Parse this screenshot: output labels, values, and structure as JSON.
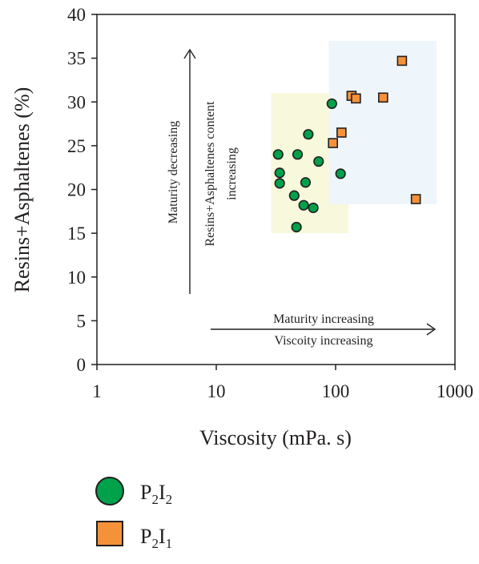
{
  "chart_data": {
    "type": "scatter",
    "xlabel": "Viscosity (mPa. s)",
    "ylabel": "Resins+Asphaltenes (%)",
    "xscale": "log",
    "xlim": [
      1,
      1000
    ],
    "x_ticks": [
      "1",
      "10",
      "100",
      "1000"
    ],
    "y_ticks": [
      "0",
      "5",
      "10",
      "15",
      "20",
      "25",
      "30",
      "35",
      "40"
    ],
    "grid": false,
    "legend_placement": "below",
    "annotations": {
      "vertical_arrow_text": "Maturity decreasing",
      "vertical_text_line1": "Resins+Asphaltenes content",
      "vertical_text_line2": "increasing",
      "horizontal_text_line1": "Maturity increasing",
      "horizontal_text_line2": "Viscoity increasing"
    },
    "regions": [
      {
        "series": "P2I2",
        "x": [
          29,
          128
        ],
        "y": [
          15,
          31
        ],
        "color": "#f8f8dc"
      },
      {
        "series": "P2I1",
        "x": [
          88,
          700
        ],
        "y": [
          18.3,
          37
        ],
        "color": "#eef6fb"
      }
    ],
    "series": [
      {
        "name": "P2I2",
        "legend_main": "P",
        "legend_sub1": "2",
        "legend_mid": "I",
        "legend_sub2": "2",
        "marker": "circle",
        "color": "#00a14b",
        "points": [
          {
            "x": 33,
            "y": 24.0
          },
          {
            "x": 34,
            "y": 21.9
          },
          {
            "x": 34,
            "y": 20.7
          },
          {
            "x": 48,
            "y": 24.0
          },
          {
            "x": 45,
            "y": 19.3
          },
          {
            "x": 47,
            "y": 15.7
          },
          {
            "x": 54,
            "y": 18.2
          },
          {
            "x": 56,
            "y": 20.8
          },
          {
            "x": 59,
            "y": 26.3
          },
          {
            "x": 65,
            "y": 17.9
          },
          {
            "x": 72,
            "y": 23.2
          },
          {
            "x": 93,
            "y": 29.8
          },
          {
            "x": 110,
            "y": 21.8
          }
        ]
      },
      {
        "name": "P2I1",
        "legend_main": "P",
        "legend_sub1": "2",
        "legend_mid": "I",
        "legend_sub2": "1",
        "marker": "square",
        "color": "#f4923a",
        "points": [
          {
            "x": 95,
            "y": 25.3
          },
          {
            "x": 112,
            "y": 26.5
          },
          {
            "x": 136,
            "y": 30.7
          },
          {
            "x": 148,
            "y": 30.4
          },
          {
            "x": 250,
            "y": 30.5
          },
          {
            "x": 360,
            "y": 34.7
          },
          {
            "x": 470,
            "y": 18.9
          }
        ]
      }
    ]
  }
}
